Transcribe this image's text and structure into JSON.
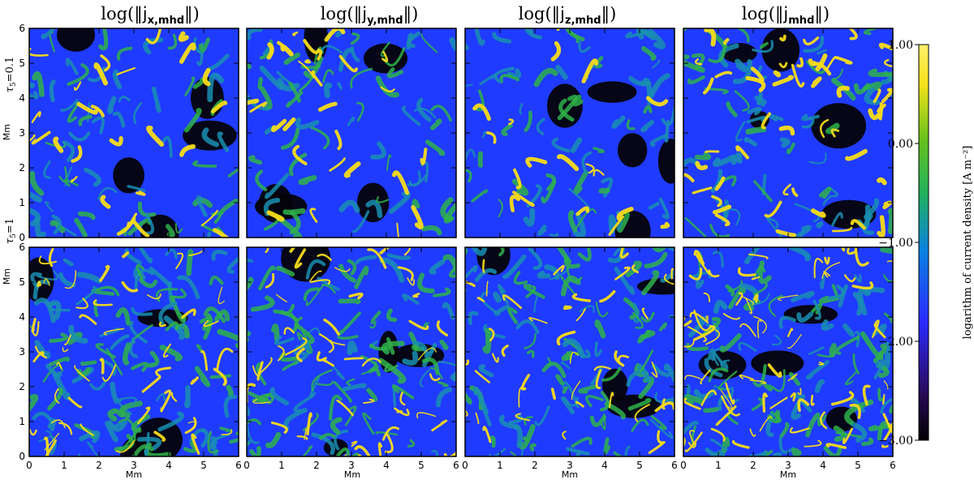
{
  "figure": {
    "column_titles": [
      {
        "prefix": "log(‖",
        "var": "j",
        "sub": "x,mhd",
        "suffix": "‖)"
      },
      {
        "prefix": "log(‖",
        "var": "j",
        "sub": "y,mhd",
        "suffix": "‖)"
      },
      {
        "prefix": "log(‖",
        "var": "j",
        "sub": "z,mhd",
        "suffix": "‖)"
      },
      {
        "prefix": "log(‖",
        "var": "j",
        "sub": "mhd",
        "suffix": "‖)"
      }
    ],
    "row_labels": [
      {
        "tau": "τ",
        "sub": "5",
        "value": "=0.1",
        "unit": "Mm"
      },
      {
        "tau": "τ",
        "sub": "5",
        "value": "=1",
        "unit": "Mm"
      }
    ],
    "x_axis_label": "Mm",
    "x_ticks": [
      "0",
      "1",
      "2",
      "3",
      "4",
      "5",
      "6"
    ],
    "y_ticks": [
      "0",
      "1",
      "2",
      "3",
      "4",
      "5",
      "6"
    ],
    "colorbar": {
      "label": "logarithm of current density [A m⁻²]",
      "ticks": [
        "1.00",
        "0.00",
        "−1.00",
        "−2.00",
        "−3.00"
      ],
      "range": [
        -3.0,
        1.0
      ],
      "colormap": [
        "#000000",
        "#2a0a5a",
        "#2a2aff",
        "#0a82e0",
        "#1fb060",
        "#66c21c",
        "#f5e21a",
        "#fff06a"
      ]
    },
    "panel_colors": {
      "background": "#1f3bff",
      "dark": "#05030a",
      "teal": "#1a8fb0",
      "green": "#2fb24a",
      "yellow": "#f7dc18"
    }
  }
}
